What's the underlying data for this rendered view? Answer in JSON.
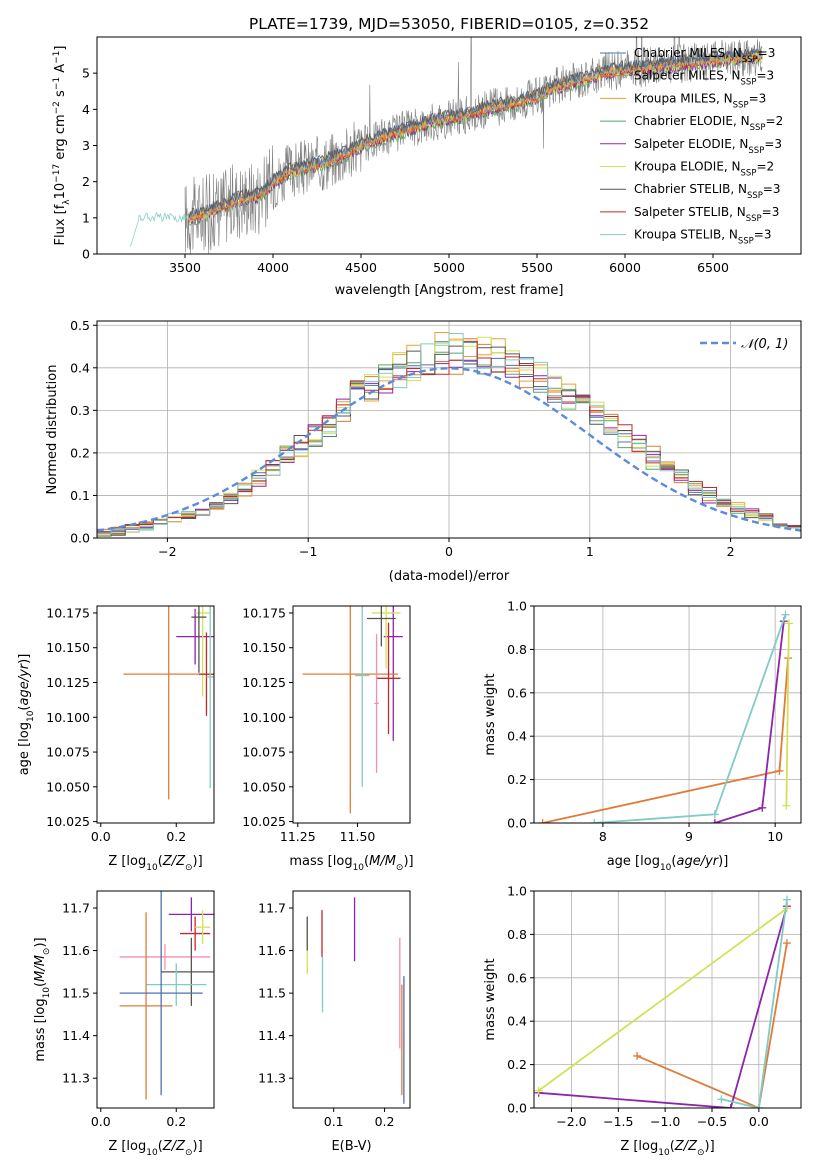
{
  "figure_title": "PLATE=1739, MJD=53050, FIBERID=0105, z=0.352",
  "colors": [
    "#4c72b0",
    "#e07b39",
    "#f0a030",
    "#55a868",
    "#8e24aa",
    "#d4e157",
    "#555555",
    "#c62828",
    "#80cbc4"
  ],
  "chart_data": [
    {
      "id": "spectrum",
      "type": "line",
      "title": "PLATE=1739, MJD=53050, FIBERID=0105, z=0.352",
      "xlabel": "wavelength [Angstrom, rest frame]",
      "ylabel": "Flux [f_λ10^-17 erg cm^-2 s^-1 A^-1]",
      "xlim": [
        3000,
        7000
      ],
      "ylim": [
        0,
        6
      ],
      "xticks": [
        3500,
        4000,
        4500,
        5000,
        5500,
        6000,
        6500
      ],
      "yticks": [
        0,
        1,
        2,
        3,
        4,
        5
      ],
      "grid": false,
      "legend_position": "upper right",
      "legend": [
        {
          "label": "Chabrier MILES, N",
          "sub": "SSP",
          "suffix": "=3"
        },
        {
          "label": "Salpeter MILES, N",
          "sub": "SSP",
          "suffix": "=3"
        },
        {
          "label": "Kroupa MILES, N",
          "sub": "SSP",
          "suffix": "=3"
        },
        {
          "label": "Chabrier ELODIE, N",
          "sub": "SSP",
          "suffix": "=2"
        },
        {
          "label": "Salpeter ELODIE, N",
          "sub": "SSP",
          "suffix": "=3"
        },
        {
          "label": "Kroupa ELODIE, N",
          "sub": "SSP",
          "suffix": "=2"
        },
        {
          "label": "Chabrier STELIB, N",
          "sub": "SSP",
          "suffix": "=3"
        },
        {
          "label": "Salpeter STELIB, N",
          "sub": "SSP",
          "suffix": "=3"
        },
        {
          "label": "Kroupa STELIB, N",
          "sub": "SSP",
          "suffix": "=3"
        }
      ],
      "continuum": {
        "x": [
          3200,
          3250,
          3350,
          3450,
          3520,
          3600,
          3700,
          3800,
          3900,
          3950,
          4000,
          4100,
          4200,
          4300,
          4400,
          4500,
          4600,
          4700,
          4800,
          4900,
          5000,
          5100,
          5200,
          5300,
          5400,
          5500,
          5600,
          5700,
          5800,
          5900,
          6000,
          6100,
          6200,
          6300,
          6400,
          6500,
          6600,
          6700,
          6800
        ],
        "y": [
          0.6,
          1.0,
          1.0,
          0.95,
          1.0,
          1.1,
          1.3,
          1.5,
          1.6,
          1.7,
          2.0,
          2.3,
          2.4,
          2.55,
          2.75,
          3.0,
          3.2,
          3.35,
          3.5,
          3.65,
          3.75,
          3.85,
          4.0,
          4.1,
          4.2,
          4.35,
          4.6,
          4.75,
          4.9,
          5.05,
          5.1,
          5.15,
          5.2,
          5.25,
          5.3,
          5.35,
          5.4,
          5.45,
          5.5
        ]
      },
      "data_range": [
        3500,
        6780
      ]
    },
    {
      "id": "residuals",
      "type": "histogram",
      "xlabel": "(data-model)/error",
      "ylabel": "Normed distribution",
      "xlim": [
        -2.5,
        2.5
      ],
      "ylim": [
        0,
        0.51
      ],
      "xticks": [
        -2,
        -1,
        0,
        1,
        2
      ],
      "yticks": [
        0.0,
        0.1,
        0.2,
        0.3,
        0.4,
        0.5
      ],
      "grid": true,
      "legend": [
        {
          "label": "𝒩(0, 1)"
        }
      ],
      "legend_position": "upper right",
      "bin_width": 0.1,
      "bins": [
        -2.5,
        -2.4,
        -2.3,
        -2.2,
        -2.1,
        -2.0,
        -1.9,
        -1.8,
        -1.7,
        -1.6,
        -1.5,
        -1.4,
        -1.3,
        -1.2,
        -1.1,
        -1.0,
        -0.9,
        -0.8,
        -0.7,
        -0.6,
        -0.5,
        -0.4,
        -0.3,
        -0.2,
        -0.1,
        0.0,
        0.1,
        0.2,
        0.3,
        0.4,
        0.5,
        0.6,
        0.7,
        0.8,
        0.9,
        1.0,
        1.1,
        1.2,
        1.3,
        1.4,
        1.5,
        1.6,
        1.7,
        1.8,
        1.9,
        2.0,
        2.1,
        2.2,
        2.3,
        2.4
      ],
      "base_density": [
        0.012,
        0.017,
        0.022,
        0.028,
        0.037,
        0.045,
        0.053,
        0.065,
        0.078,
        0.095,
        0.115,
        0.14,
        0.165,
        0.19,
        0.215,
        0.24,
        0.27,
        0.3,
        0.33,
        0.355,
        0.38,
        0.395,
        0.41,
        0.42,
        0.43,
        0.435,
        0.43,
        0.425,
        0.415,
        0.405,
        0.39,
        0.375,
        0.355,
        0.335,
        0.315,
        0.29,
        0.265,
        0.24,
        0.215,
        0.19,
        0.165,
        0.14,
        0.12,
        0.1,
        0.085,
        0.07,
        0.058,
        0.047,
        0.038,
        0.03
      ]
    },
    {
      "id": "age-vs-Z",
      "type": "errorbar",
      "xlabel": "Z [log10(Z/Z☉)]",
      "ylabel": "age [log10(age/yr)]",
      "xlim": [
        -0.01,
        0.3
      ],
      "ylim": [
        10.024,
        10.18
      ],
      "xticks": [
        0.0,
        0.2
      ],
      "yticks": [
        10.025,
        10.05,
        10.075,
        10.1,
        10.125,
        10.15,
        10.175
      ],
      "points": [
        {
          "x": 0.25,
          "xerr": 0.05,
          "y": 10.158,
          "yerr": 0.02,
          "color": "#8e24aa"
        },
        {
          "x": 0.18,
          "xerr": 0.12,
          "y": 10.131,
          "yerr": 0.09,
          "color": "#e07b39"
        },
        {
          "x": 0.27,
          "xerr": 0.02,
          "y": 10.175,
          "yerr": 0.06,
          "color": "#d4e157"
        },
        {
          "x": 0.26,
          "xerr": 0.02,
          "y": 10.172,
          "yerr": 0.04,
          "color": "#555555"
        },
        {
          "x": 0.28,
          "xerr": 0.02,
          "y": 10.131,
          "yerr": 0.03,
          "color": "#c62828"
        },
        {
          "x": 0.29,
          "xerr": 0.01,
          "y": 10.129,
          "yerr": 0.08,
          "color": "#80cbc4"
        }
      ]
    },
    {
      "id": "age-vs-mass",
      "type": "errorbar",
      "xlabel": "mass [log10(M/M☉)]",
      "xlim": [
        11.23,
        11.72
      ],
      "ylim": [
        10.024,
        10.18
      ],
      "xticks": [
        11.25,
        11.5
      ],
      "yticks": [
        10.025,
        10.05,
        10.075,
        10.1,
        10.125,
        10.15,
        10.175
      ],
      "points": [
        {
          "x": 11.65,
          "xerr": 0.04,
          "y": 10.158,
          "yerr": 0.075,
          "color": "#8e24aa"
        },
        {
          "x": 11.47,
          "xerr": 0.2,
          "y": 10.131,
          "yerr": 0.1,
          "color": "#e07b39"
        },
        {
          "x": 11.62,
          "xerr": 0.06,
          "y": 10.175,
          "yerr": 0.04,
          "color": "#d4e157"
        },
        {
          "x": 11.6,
          "xerr": 0.06,
          "y": 10.171,
          "yerr": 0.02,
          "color": "#555555"
        },
        {
          "x": 11.63,
          "xerr": 0.05,
          "y": 10.128,
          "yerr": 0.04,
          "color": "#c62828"
        },
        {
          "x": 11.52,
          "xerr": 0.03,
          "y": 10.13,
          "yerr": 0.08,
          "color": "#80cbc4"
        },
        {
          "x": 11.58,
          "xerr": 0.01,
          "y": 10.11,
          "yerr": 0.05,
          "color": "#f48fb1"
        }
      ]
    },
    {
      "id": "mass-weight-vs-age",
      "type": "line",
      "xlabel": "age [log10(age/yr)]",
      "ylabel": "mass weight",
      "xlim": [
        7.2,
        10.3
      ],
      "ylim": [
        0,
        1.0
      ],
      "xticks": [
        8,
        9,
        10
      ],
      "yticks": [
        0.0,
        0.2,
        0.4,
        0.6,
        0.8,
        1.0
      ],
      "grid": true,
      "series": [
        {
          "color": "#e07b39",
          "x": [
            7.3,
            10.05,
            10.15
          ],
          "y": [
            0.0,
            0.24,
            0.76
          ]
        },
        {
          "color": "#8e24aa",
          "x": [
            9.3,
            9.85,
            10.1
          ],
          "y": [
            0.0,
            0.07,
            0.93
          ]
        },
        {
          "color": "#80cbc4",
          "x": [
            7.9,
            9.3,
            10.12
          ],
          "y": [
            0.0,
            0.04,
            0.96
          ]
        },
        {
          "color": "#d4e157",
          "x": [
            10.13,
            10.16
          ],
          "y": [
            0.08,
            0.92
          ]
        }
      ]
    },
    {
      "id": "mass-vs-Z",
      "type": "errorbar",
      "xlabel": "Z [log10(Z/Z☉)]",
      "ylabel": "mass [log10(M/M☉)]",
      "xlim": [
        -0.01,
        0.3
      ],
      "ylim": [
        11.23,
        11.74
      ],
      "xticks": [
        0.0,
        0.2
      ],
      "yticks": [
        11.3,
        11.4,
        11.5,
        11.6,
        11.7
      ],
      "points": [
        {
          "x": 0.24,
          "xerr": 0.06,
          "y": 11.685,
          "yerr": 0.04,
          "color": "#8e24aa"
        },
        {
          "x": 0.25,
          "xerr": 0.04,
          "y": 11.64,
          "yerr": 0.04,
          "color": "#c62828"
        },
        {
          "x": 0.27,
          "xerr": 0.02,
          "y": 11.655,
          "yerr": 0.04,
          "color": "#d4e157"
        },
        {
          "x": 0.17,
          "xerr": 0.12,
          "y": 11.585,
          "yerr": 0.03,
          "color": "#f48fb1"
        },
        {
          "x": 0.24,
          "xerr": 0.08,
          "y": 11.55,
          "yerr": 0.08,
          "color": "#555555"
        },
        {
          "x": 0.2,
          "xerr": 0.08,
          "y": 11.52,
          "yerr": 0.05,
          "color": "#80cbc4"
        },
        {
          "x": 0.12,
          "xerr": 0.07,
          "y": 11.47,
          "yerr": 0.22,
          "color": "#e07b39"
        },
        {
          "x": 0.16,
          "xerr": 0.11,
          "y": 11.5,
          "yerr": 0.24,
          "color": "#4c72b0"
        }
      ]
    },
    {
      "id": "mass-vs-EBV",
      "type": "errorbar",
      "xlabel": "E(B-V)",
      "xlim": [
        0.02,
        0.25
      ],
      "ylim": [
        11.23,
        11.74
      ],
      "xticks": [
        0.1,
        0.2
      ],
      "yticks": [
        11.3,
        11.4,
        11.5,
        11.6,
        11.7
      ],
      "points": [
        {
          "x": 0.048,
          "yerr": 0.065,
          "y": 11.61,
          "color": "#d4e157"
        },
        {
          "x": 0.048,
          "yerr": 0.04,
          "y": 11.64,
          "color": "#555555"
        },
        {
          "x": 0.077,
          "yerr": 0.055,
          "y": 11.64,
          "color": "#c62828"
        },
        {
          "x": 0.078,
          "yerr": 0.065,
          "y": 11.52,
          "color": "#80cbc4"
        },
        {
          "x": 0.141,
          "yerr": 0.075,
          "y": 11.65,
          "color": "#8e24aa"
        },
        {
          "x": 0.23,
          "yerr": 0.13,
          "y": 11.5,
          "color": "#f48fb1"
        },
        {
          "x": 0.234,
          "yerr": 0.13,
          "y": 11.39,
          "color": "#e07b39"
        },
        {
          "x": 0.238,
          "yerr": 0.15,
          "y": 11.39,
          "color": "#4c72b0"
        }
      ]
    },
    {
      "id": "mass-weight-vs-Z",
      "type": "line",
      "xlabel": "Z [log10(Z/Z☉)]",
      "ylabel": "mass weight",
      "xlim": [
        -2.4,
        0.45
      ],
      "ylim": [
        0,
        1.0
      ],
      "xticks": [
        -2.0,
        -1.5,
        -1.0,
        -0.5,
        0.0
      ],
      "yticks": [
        0.0,
        0.2,
        0.4,
        0.6,
        0.8,
        1.0
      ],
      "grid": true,
      "series": [
        {
          "color": "#e07b39",
          "x": [
            -1.3,
            0.0,
            0.3
          ],
          "y": [
            0.24,
            0.0,
            0.76
          ]
        },
        {
          "color": "#8e24aa",
          "x": [
            -2.35,
            -0.3,
            0.3
          ],
          "y": [
            0.07,
            0.0,
            0.93
          ]
        },
        {
          "color": "#d4e157",
          "x": [
            -2.35,
            0.3
          ],
          "y": [
            0.08,
            0.92
          ]
        },
        {
          "color": "#80cbc4",
          "x": [
            -0.4,
            0.0,
            0.3
          ],
          "y": [
            0.04,
            0.0,
            0.96
          ]
        }
      ]
    }
  ]
}
